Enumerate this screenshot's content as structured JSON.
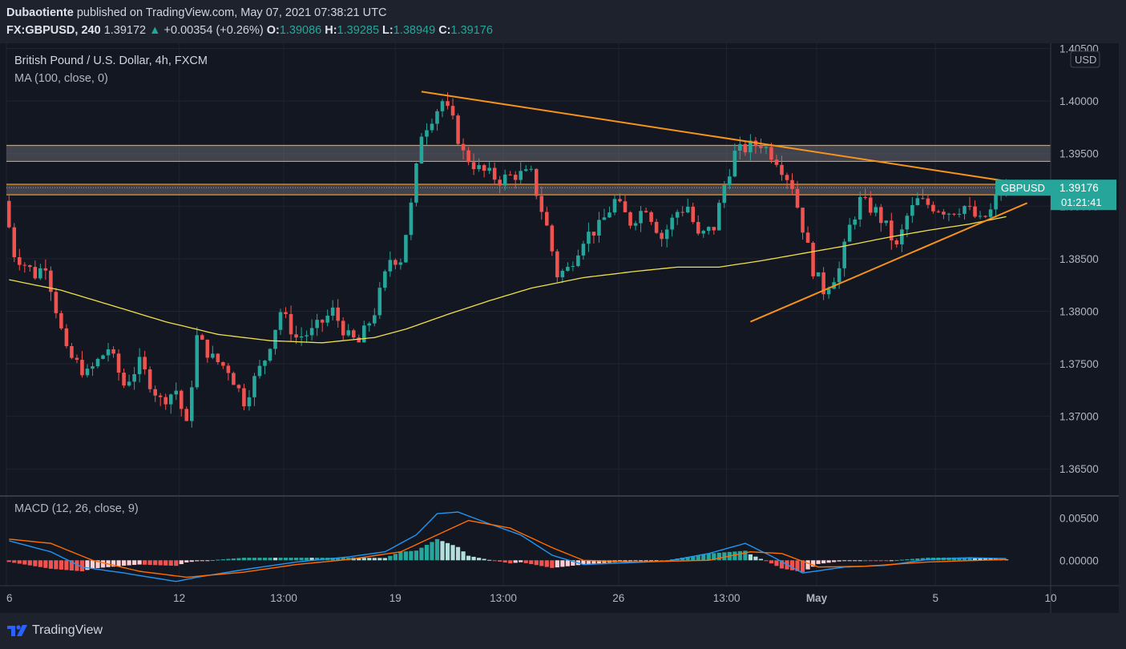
{
  "header": {
    "author": "Dubaotiente",
    "published_text": "published on TradingView.com, May 07, 2021 07:38:21 UTC",
    "symbol": "FX:GBPUSD, 240",
    "last": "1.39172",
    "change": "+0.00354 (+0.26%)",
    "o_label": "O:",
    "o_value": "1.39086",
    "h_label": "H:",
    "h_value": "1.39285",
    "l_label": "L:",
    "l_value": "1.38949",
    "c_label": "C:",
    "c_value": "1.39176"
  },
  "legend": {
    "title": "British Pound / U.S. Dollar, 4h, FXCM",
    "ma": "MA (100, close, 0)",
    "macd": "MACD (12, 26, close, 9)"
  },
  "footer": {
    "brand": "TradingView"
  },
  "colors": {
    "bg": "#131722",
    "grid": "#1f2430",
    "up": "#26a69a",
    "down": "#ef5350",
    "ma": "#f0e04a",
    "trend": "#f7931a",
    "macd": "#2196f3",
    "signal": "#ff6d00"
  },
  "chart_data": [
    {
      "type": "candlestick",
      "title": "British Pound / U.S. Dollar, 4h, FXCM",
      "currency": "USD",
      "ylim": [
        1.3625,
        1.4055
      ],
      "y_ticks": [
        "1.40500",
        "1.40000",
        "1.39500",
        "1.39000",
        "1.38500",
        "1.38000",
        "1.37500",
        "1.37000",
        "1.36500"
      ],
      "x_ticks": [
        "6",
        "12",
        "13:00",
        "19",
        "13:00",
        "26",
        "13:00",
        "May",
        "5",
        "10"
      ],
      "price_label": {
        "symbol": "GBPUSD",
        "value": "1.39176",
        "countdown": "01:21:41"
      },
      "anchors": [
        {
          "bar": 0,
          "v": 1.3905
        },
        {
          "bar": 2,
          "v": 1.3855
        },
        {
          "bar": 6,
          "v": 1.3835
        },
        {
          "bar": 8,
          "v": 1.3845
        },
        {
          "bar": 12,
          "v": 1.376
        },
        {
          "bar": 16,
          "v": 1.374
        },
        {
          "bar": 20,
          "v": 1.3765
        },
        {
          "bar": 23,
          "v": 1.373
        },
        {
          "bar": 26,
          "v": 1.375
        },
        {
          "bar": 30,
          "v": 1.3715
        },
        {
          "bar": 33,
          "v": 1.3725
        },
        {
          "bar": 35,
          "v": 1.369
        },
        {
          "bar": 37,
          "v": 1.3775
        },
        {
          "bar": 40,
          "v": 1.3755
        },
        {
          "bar": 43,
          "v": 1.3745
        },
        {
          "bar": 46,
          "v": 1.3715
        },
        {
          "bar": 50,
          "v": 1.3755
        },
        {
          "bar": 53,
          "v": 1.38
        },
        {
          "bar": 56,
          "v": 1.3775
        },
        {
          "bar": 59,
          "v": 1.378
        },
        {
          "bar": 63,
          "v": 1.38
        },
        {
          "bar": 66,
          "v": 1.3775
        },
        {
          "bar": 68,
          "v": 1.377
        },
        {
          "bar": 71,
          "v": 1.38
        },
        {
          "bar": 74,
          "v": 1.385
        },
        {
          "bar": 76,
          "v": 1.385
        },
        {
          "bar": 78,
          "v": 1.39
        },
        {
          "bar": 80,
          "v": 1.397
        },
        {
          "bar": 84,
          "v": 1.4
        },
        {
          "bar": 86,
          "v": 1.398
        },
        {
          "bar": 88,
          "v": 1.395
        },
        {
          "bar": 91,
          "v": 1.3935
        },
        {
          "bar": 95,
          "v": 1.3925
        },
        {
          "bar": 98,
          "v": 1.393
        },
        {
          "bar": 101,
          "v": 1.393
        },
        {
          "bar": 104,
          "v": 1.388
        },
        {
          "bar": 106,
          "v": 1.3835
        },
        {
          "bar": 108,
          "v": 1.384
        },
        {
          "bar": 111,
          "v": 1.387
        },
        {
          "bar": 114,
          "v": 1.388
        },
        {
          "bar": 117,
          "v": 1.3905
        },
        {
          "bar": 120,
          "v": 1.3885
        },
        {
          "bar": 123,
          "v": 1.39
        },
        {
          "bar": 126,
          "v": 1.387
        },
        {
          "bar": 129,
          "v": 1.3895
        },
        {
          "bar": 131,
          "v": 1.39
        },
        {
          "bar": 133,
          "v": 1.387
        },
        {
          "bar": 136,
          "v": 1.388
        },
        {
          "bar": 138,
          "v": 1.392
        },
        {
          "bar": 140,
          "v": 1.395
        },
        {
          "bar": 142,
          "v": 1.3955
        },
        {
          "bar": 145,
          "v": 1.396
        },
        {
          "bar": 148,
          "v": 1.3945
        },
        {
          "bar": 151,
          "v": 1.392
        },
        {
          "bar": 153,
          "v": 1.388
        },
        {
          "bar": 155,
          "v": 1.384
        },
        {
          "bar": 157,
          "v": 1.382
        },
        {
          "bar": 160,
          "v": 1.384
        },
        {
          "bar": 162,
          "v": 1.388
        },
        {
          "bar": 164,
          "v": 1.3905
        },
        {
          "bar": 167,
          "v": 1.3895
        },
        {
          "bar": 169,
          "v": 1.388
        },
        {
          "bar": 171,
          "v": 1.386
        },
        {
          "bar": 173,
          "v": 1.389
        },
        {
          "bar": 175,
          "v": 1.3905
        },
        {
          "bar": 178,
          "v": 1.39
        },
        {
          "bar": 181,
          "v": 1.3895
        },
        {
          "bar": 184,
          "v": 1.39
        },
        {
          "bar": 187,
          "v": 1.3885
        },
        {
          "bar": 189,
          "v": 1.3895
        },
        {
          "bar": 191,
          "v": 1.39176
        }
      ],
      "moving_average": [
        {
          "bar": 0,
          "v": 1.383
        },
        {
          "bar": 10,
          "v": 1.382
        },
        {
          "bar": 20,
          "v": 1.3805
        },
        {
          "bar": 30,
          "v": 1.379
        },
        {
          "bar": 40,
          "v": 1.3778
        },
        {
          "bar": 50,
          "v": 1.3772
        },
        {
          "bar": 60,
          "v": 1.377
        },
        {
          "bar": 70,
          "v": 1.3775
        },
        {
          "bar": 76,
          "v": 1.3783
        },
        {
          "bar": 84,
          "v": 1.3797
        },
        {
          "bar": 92,
          "v": 1.381
        },
        {
          "bar": 100,
          "v": 1.3822
        },
        {
          "bar": 110,
          "v": 1.3832
        },
        {
          "bar": 120,
          "v": 1.3838
        },
        {
          "bar": 128,
          "v": 1.3842
        },
        {
          "bar": 136,
          "v": 1.3842
        },
        {
          "bar": 144,
          "v": 1.3848
        },
        {
          "bar": 152,
          "v": 1.3855
        },
        {
          "bar": 160,
          "v": 1.3862
        },
        {
          "bar": 168,
          "v": 1.387
        },
        {
          "bar": 176,
          "v": 1.3877
        },
        {
          "bar": 184,
          "v": 1.3883
        },
        {
          "bar": 191,
          "v": 1.389
        }
      ],
      "zones": [
        {
          "from": 1.39426,
          "to": 1.39578
        },
        {
          "from": 1.39108,
          "to": 1.39208
        }
      ],
      "trendlines": [
        {
          "bar1": 79,
          "v1": 1.4009,
          "bar2": 196,
          "v2": 1.392
        },
        {
          "bar1": 142,
          "v1": 1.379,
          "bar2": 195,
          "v2": 1.3903
        }
      ]
    },
    {
      "type": "macd",
      "title": "MACD (12, 26, close, 9)",
      "ylim": [
        -0.003,
        0.0075
      ],
      "y_ticks": [
        "0.00500",
        "0.00000"
      ],
      "macd": [
        {
          "bar": 0,
          "v": 0.0023
        },
        {
          "bar": 8,
          "v": 0.001
        },
        {
          "bar": 14,
          "v": -0.0008
        },
        {
          "bar": 22,
          "v": -0.0015
        },
        {
          "bar": 32,
          "v": -0.0025
        },
        {
          "bar": 36,
          "v": -0.002
        },
        {
          "bar": 45,
          "v": -0.0011
        },
        {
          "bar": 55,
          "v": -0.0002
        },
        {
          "bar": 65,
          "v": 0.0004
        },
        {
          "bar": 72,
          "v": 0.001
        },
        {
          "bar": 78,
          "v": 0.003
        },
        {
          "bar": 82,
          "v": 0.0055
        },
        {
          "bar": 86,
          "v": 0.0057
        },
        {
          "bar": 92,
          "v": 0.0043
        },
        {
          "bar": 98,
          "v": 0.003
        },
        {
          "bar": 104,
          "v": 0.0006
        },
        {
          "bar": 110,
          "v": -0.0005
        },
        {
          "bar": 118,
          "v": -0.0003
        },
        {
          "bar": 126,
          "v": -0.0001
        },
        {
          "bar": 134,
          "v": 0.0008
        },
        {
          "bar": 141,
          "v": 0.002
        },
        {
          "bar": 146,
          "v": 0.0005
        },
        {
          "bar": 152,
          "v": -0.0015
        },
        {
          "bar": 160,
          "v": -0.0008
        },
        {
          "bar": 168,
          "v": -0.0006
        },
        {
          "bar": 176,
          "v": 0.0001
        },
        {
          "bar": 184,
          "v": 0.0003
        },
        {
          "bar": 191,
          "v": 0.0002
        }
      ],
      "signal": [
        {
          "bar": 0,
          "v": 0.0025
        },
        {
          "bar": 8,
          "v": 0.002
        },
        {
          "bar": 16,
          "v": 0.0
        },
        {
          "bar": 25,
          "v": -0.0013
        },
        {
          "bar": 34,
          "v": -0.002
        },
        {
          "bar": 45,
          "v": -0.0014
        },
        {
          "bar": 55,
          "v": -0.0005
        },
        {
          "bar": 65,
          "v": 0.0001
        },
        {
          "bar": 75,
          "v": 0.001
        },
        {
          "bar": 82,
          "v": 0.003
        },
        {
          "bar": 88,
          "v": 0.0047
        },
        {
          "bar": 96,
          "v": 0.0038
        },
        {
          "bar": 104,
          "v": 0.0015
        },
        {
          "bar": 110,
          "v": 0.0
        },
        {
          "bar": 120,
          "v": -0.0002
        },
        {
          "bar": 134,
          "v": 0.0
        },
        {
          "bar": 142,
          "v": 0.001
        },
        {
          "bar": 148,
          "v": 0.0008
        },
        {
          "bar": 155,
          "v": -0.0008
        },
        {
          "bar": 164,
          "v": -0.0007
        },
        {
          "bar": 176,
          "v": -0.0002
        },
        {
          "bar": 191,
          "v": 0.0001
        }
      ]
    }
  ]
}
